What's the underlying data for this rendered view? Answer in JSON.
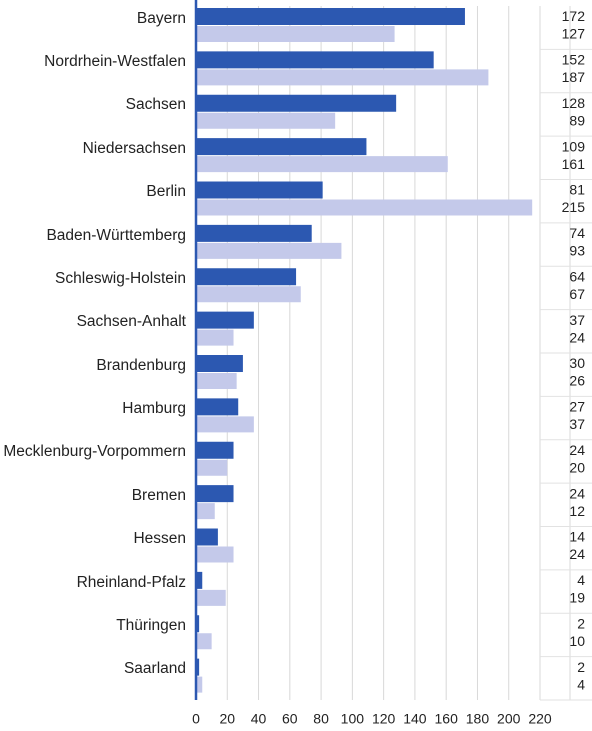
{
  "chart_data": {
    "type": "hbar",
    "categories": [
      "Bayern",
      "Nordrhein-Westfalen",
      "Sachsen",
      "Niedersachsen",
      "Berlin",
      "Baden-Württemberg",
      "Schleswig-Holstein",
      "Sachsen-Anhalt",
      "Brandenburg",
      "Hamburg",
      "Mecklenburg-Vorpommern",
      "Bremen",
      "Hessen",
      "Rheinland-Pfalz",
      "Thüringen",
      "Saarland"
    ],
    "series": [
      {
        "color": "#2c58b1",
        "values": [
          172,
          152,
          128,
          109,
          81,
          74,
          64,
          37,
          30,
          27,
          24,
          24,
          14,
          4,
          2,
          2
        ]
      },
      {
        "color": "#c4c9ea",
        "values": [
          127,
          187,
          89,
          161,
          215,
          93,
          67,
          24,
          26,
          37,
          20,
          12,
          24,
          19,
          10,
          4
        ]
      }
    ],
    "xlim": [
      0,
      220
    ],
    "xticks": [
      0,
      20,
      40,
      60,
      80,
      100,
      120,
      140,
      160,
      180,
      200,
      220
    ],
    "grid": true
  }
}
